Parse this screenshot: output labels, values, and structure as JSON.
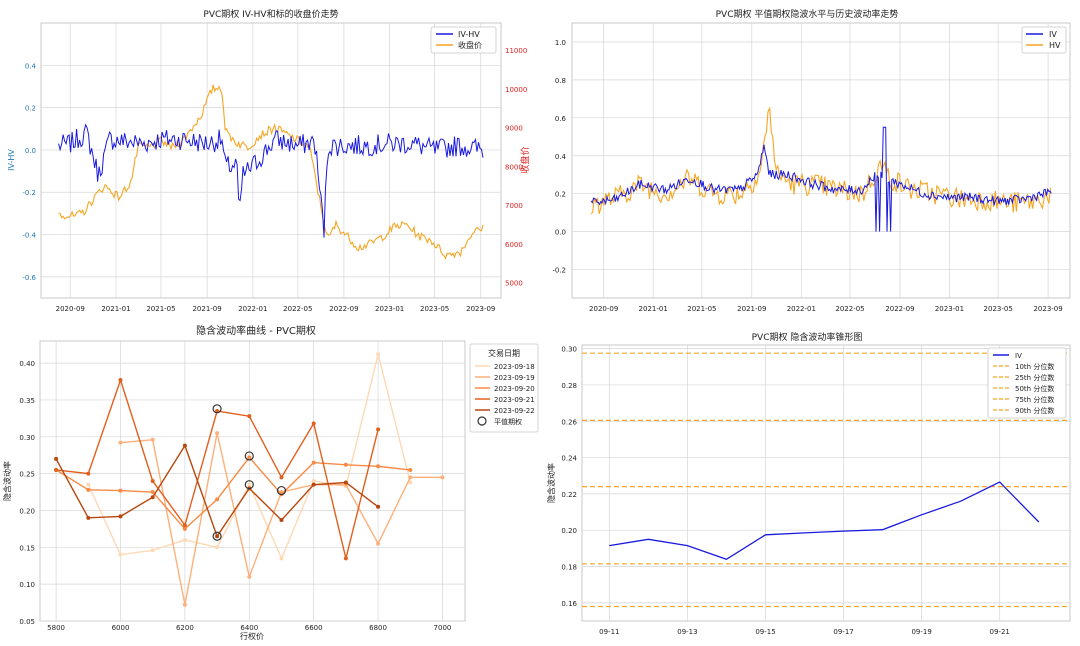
{
  "colors": {
    "blue": "#1a1adf",
    "orange": "#f5a623",
    "red_axis": "#e02020",
    "blue_axis": "#1f77b4",
    "grid": "#d6d6d6",
    "legend_border": "#c8c8c8"
  },
  "chart_data": [
    {
      "id": "ivhv",
      "type": "line",
      "title": "PVC期权 IV-HV和标的收盘价走势",
      "ylabel": "IV-HV",
      "y2label": "收盘价",
      "xticks": [
        "2020-09",
        "2021-01",
        "2021-05",
        "2021-09",
        "2022-01",
        "2022-05",
        "2022-09",
        "2023-01",
        "2023-05",
        "2023-09"
      ],
      "yticks": [
        0.4,
        0.2,
        0.0,
        -0.2,
        -0.4,
        -0.6
      ],
      "ytick_labels": [
        "0.4",
        "0.2",
        "0.0",
        "-0.2",
        "-0.4",
        "-0.6"
      ],
      "y2ticks": [
        11000,
        10000,
        9000,
        8000,
        7000,
        6000,
        5000
      ],
      "ylim": [
        -0.7,
        0.6
      ],
      "y2lim": [
        4600,
        11700
      ],
      "legend_loc": "upper right",
      "series": [
        {
          "name": "IV-HV",
          "color": "blue",
          "axis": "left",
          "anchors": [
            [
              "2020-08-01",
              0.02
            ],
            [
              "2020-09-01",
              0.03
            ],
            [
              "2020-10-15",
              0.08
            ],
            [
              "2020-11-15",
              -0.12
            ],
            [
              "2020-12-15",
              0.05
            ],
            [
              "2021-02-01",
              0.04
            ],
            [
              "2021-03-15",
              0.03
            ],
            [
              "2021-05-01",
              0.05
            ],
            [
              "2021-07-01",
              0.05
            ],
            [
              "2021-09-01",
              0.03
            ],
            [
              "2021-10-10",
              0.05
            ],
            [
              "2021-10-20",
              -0.08
            ],
            [
              "2021-11-20",
              -0.07
            ],
            [
              "2021-11-25",
              -0.33
            ],
            [
              "2021-12-05",
              -0.12
            ],
            [
              "2022-01-15",
              -0.05
            ],
            [
              "2022-03-01",
              0.05
            ],
            [
              "2022-05-01",
              0.02
            ],
            [
              "2022-06-15",
              0.04
            ],
            [
              "2022-07-10",
              -0.38
            ],
            [
              "2022-07-20",
              0.02
            ],
            [
              "2022-09-01",
              0.02
            ],
            [
              "2022-11-01",
              0.02
            ],
            [
              "2023-01-01",
              0.03
            ],
            [
              "2023-03-01",
              0.03
            ],
            [
              "2023-05-01",
              0.0
            ],
            [
              "2023-07-01",
              0.02
            ],
            [
              "2023-09-10",
              0.0
            ]
          ]
        },
        {
          "name": "收盘价",
          "color": "orange",
          "axis": "right",
          "anchors": [
            [
              "2020-08-01",
              6780
            ],
            [
              "2020-09-15",
              6700
            ],
            [
              "2020-10-10",
              6850
            ],
            [
              "2020-11-01",
              7150
            ],
            [
              "2020-12-01",
              7500
            ],
            [
              "2021-01-10",
              7200
            ],
            [
              "2021-02-10",
              7600
            ],
            [
              "2021-03-01",
              8500
            ],
            [
              "2021-04-01",
              8500
            ],
            [
              "2021-05-01",
              8650
            ],
            [
              "2021-06-01",
              8500
            ],
            [
              "2021-07-01",
              8700
            ],
            [
              "2021-08-15",
              9300
            ],
            [
              "2021-09-15",
              10000
            ],
            [
              "2021-10-10",
              10050
            ],
            [
              "2021-10-20",
              8900
            ],
            [
              "2021-11-20",
              8600
            ],
            [
              "2021-12-20",
              8500
            ],
            [
              "2022-01-20",
              8800
            ],
            [
              "2022-03-01",
              9000
            ],
            [
              "2022-04-15",
              8750
            ],
            [
              "2022-06-01",
              8500
            ],
            [
              "2022-07-01",
              7000
            ],
            [
              "2022-07-20",
              6100
            ],
            [
              "2022-08-10",
              6500
            ],
            [
              "2022-09-10",
              6200
            ],
            [
              "2022-10-10",
              5900
            ],
            [
              "2022-11-10",
              6000
            ],
            [
              "2022-12-15",
              6200
            ],
            [
              "2023-01-15",
              6450
            ],
            [
              "2023-02-15",
              6500
            ],
            [
              "2023-03-20",
              6200
            ],
            [
              "2023-04-20",
              6100
            ],
            [
              "2023-06-01",
              5700
            ],
            [
              "2023-07-10",
              5800
            ],
            [
              "2023-08-10",
              6300
            ],
            [
              "2023-09-10",
              6400
            ]
          ]
        }
      ]
    },
    {
      "id": "ivhv-level",
      "type": "line",
      "title": "PVC期权 平值期权隐波水平与历史波动率走势",
      "xticks": [
        "2020-09",
        "2021-01",
        "2021-05",
        "2021-09",
        "2022-01",
        "2022-05",
        "2022-09",
        "2023-01",
        "2023-05",
        "2023-09"
      ],
      "yticks": [
        1.0,
        0.8,
        0.6,
        0.4,
        0.2,
        0.0,
        -0.2
      ],
      "ytick_labels": [
        "1.0",
        "0.8",
        "0.6",
        "0.4",
        "0.2",
        "0.0",
        "-0.2"
      ],
      "ylim": [
        -0.35,
        1.1
      ],
      "legend_loc": "upper right",
      "series": [
        {
          "name": "IV",
          "color": "blue",
          "anchors": [
            [
              "2020-08-01",
              0.15
            ],
            [
              "2020-10-01",
              0.17
            ],
            [
              "2020-12-01",
              0.25
            ],
            [
              "2021-02-01",
              0.22
            ],
            [
              "2021-04-01",
              0.28
            ],
            [
              "2021-06-01",
              0.22
            ],
            [
              "2021-08-01",
              0.22
            ],
            [
              "2021-09-15",
              0.3
            ],
            [
              "2021-10-01",
              0.45
            ],
            [
              "2021-10-15",
              0.3
            ],
            [
              "2021-12-01",
              0.3
            ],
            [
              "2022-02-01",
              0.25
            ],
            [
              "2022-04-01",
              0.22
            ],
            [
              "2022-06-01",
              0.22
            ],
            [
              "2022-07-01",
              0.3
            ],
            [
              "2022-08-01",
              0.28
            ],
            [
              "2022-09-01",
              0.25
            ],
            [
              "2022-11-01",
              0.2
            ],
            [
              "2023-01-01",
              0.18
            ],
            [
              "2023-03-01",
              0.18
            ],
            [
              "2023-05-01",
              0.16
            ],
            [
              "2023-07-01",
              0.17
            ],
            [
              "2023-09-10",
              0.21
            ]
          ]
        },
        {
          "name": "HV",
          "color": "orange",
          "anchors": [
            [
              "2020-08-01",
              0.14
            ],
            [
              "2020-10-01",
              0.18
            ],
            [
              "2020-12-01",
              0.25
            ],
            [
              "2021-02-01",
              0.2
            ],
            [
              "2021-04-01",
              0.28
            ],
            [
              "2021-06-01",
              0.2
            ],
            [
              "2021-08-01",
              0.2
            ],
            [
              "2021-09-20",
              0.3
            ],
            [
              "2021-10-15",
              0.65
            ],
            [
              "2021-11-01",
              0.3
            ],
            [
              "2021-12-15",
              0.25
            ],
            [
              "2022-02-01",
              0.25
            ],
            [
              "2022-04-01",
              0.22
            ],
            [
              "2022-06-01",
              0.2
            ],
            [
              "2022-07-15",
              0.35
            ],
            [
              "2022-08-15",
              0.27
            ],
            [
              "2022-10-01",
              0.22
            ],
            [
              "2022-12-01",
              0.2
            ],
            [
              "2023-02-01",
              0.17
            ],
            [
              "2023-04-01",
              0.17
            ],
            [
              "2023-06-01",
              0.15
            ],
            [
              "2023-08-01",
              0.16
            ],
            [
              "2023-09-10",
              0.2
            ]
          ]
        }
      ]
    },
    {
      "id": "smile",
      "type": "line",
      "title": "隐含波动率曲线 - PVC期权",
      "xlabel": "行权价",
      "ylabel": "隐含波动率",
      "xticks": [
        5800,
        6000,
        6200,
        6400,
        6600,
        6800,
        7000
      ],
      "yticks": [
        0.4,
        0.35,
        0.3,
        0.25,
        0.2,
        0.15,
        0.1,
        0.05
      ],
      "ytick_labels": [
        "0.40",
        "0.35",
        "0.30",
        "0.25",
        "0.20",
        "0.15",
        "0.10",
        "0.05"
      ],
      "xlim": [
        5750,
        7070
      ],
      "ylim": [
        0.05,
        0.43
      ],
      "legend_title": "交易日期",
      "legend_loc": "outside right",
      "atm_label": "平值期权",
      "series": [
        {
          "name": "2023-09-18",
          "color": "#fdd9b5",
          "x": [
            5900,
            6000,
            6100,
            6200,
            6300,
            6400,
            6500,
            6600,
            6700,
            6800,
            6900
          ],
          "y": [
            0.235,
            0.14,
            0.146,
            0.16,
            0.15,
            0.235,
            0.135,
            0.24,
            0.233,
            0.412,
            0.238
          ]
        },
        {
          "name": "2023-09-19",
          "color": "#fdb07a",
          "x": [
            6000,
            6100,
            6200,
            6300,
            6400,
            6500,
            6600,
            6700,
            6800,
            6900,
            7000
          ],
          "y": [
            0.292,
            0.296,
            0.072,
            0.305,
            0.11,
            0.225,
            0.235,
            0.235,
            0.155,
            0.245,
            0.245
          ]
        },
        {
          "name": "2023-09-20",
          "color": "#f98a45",
          "x": [
            5800,
            5900,
            6000,
            6100,
            6200,
            6300,
            6400,
            6500,
            6600,
            6700,
            6800,
            6900
          ],
          "y": [
            0.255,
            0.228,
            0.227,
            0.225,
            0.175,
            0.215,
            0.272,
            0.222,
            0.265,
            0.262,
            0.26,
            0.255
          ]
        },
        {
          "name": "2023-09-21",
          "color": "#e2601e",
          "x": [
            5800,
            5900,
            6000,
            6100,
            6200,
            6300,
            6400,
            6500,
            6600,
            6700,
            6800
          ],
          "y": [
            0.255,
            0.25,
            0.377,
            0.24,
            0.18,
            0.335,
            0.328,
            0.245,
            0.318,
            0.135,
            0.31
          ]
        },
        {
          "name": "2023-09-22",
          "color": "#b8470e",
          "x": [
            5800,
            5900,
            6000,
            6100,
            6200,
            6300,
            6400,
            6500,
            6600,
            6700,
            6800
          ],
          "y": [
            0.27,
            0.19,
            0.192,
            0.218,
            0.288,
            0.165,
            0.23,
            0.187,
            0.235,
            0.238,
            0.205
          ]
        }
      ],
      "atm_points": [
        [
          6300,
          0.338
        ],
        [
          6400,
          0.274
        ],
        [
          6400,
          0.235
        ],
        [
          6500,
          0.227
        ],
        [
          6300,
          0.165
        ]
      ]
    },
    {
      "id": "cone",
      "type": "line",
      "title": "PVC期权 隐含波动率锥形图",
      "ylabel": "隐含波动率",
      "xticks": [
        "09-11",
        "09-13",
        "09-15",
        "09-17",
        "09-19",
        "09-21"
      ],
      "yticks": [
        0.3,
        0.28,
        0.26,
        0.24,
        0.22,
        0.2,
        0.18,
        0.16
      ],
      "ytick_labels": [
        "0.30",
        "0.28",
        "0.26",
        "0.24",
        "0.22",
        "0.20",
        "0.18",
        "0.16"
      ],
      "ylim": [
        0.15,
        0.302
      ],
      "legend_loc": "upper right",
      "series": [
        {
          "name": "IV",
          "color": "blue",
          "x": [
            "09-11",
            "09-12",
            "09-13",
            "09-14",
            "09-15",
            "09-16",
            "09-17",
            "09-18",
            "09-19",
            "09-20",
            "09-21",
            "09-22"
          ],
          "y": [
            0.1915,
            0.195,
            0.1915,
            0.184,
            0.1975,
            0.1985,
            0.1995,
            0.2003,
            0.2085,
            0.216,
            0.2265,
            0.2045
          ]
        }
      ],
      "percentiles": [
        {
          "name": "10th 分位数",
          "value": 0.158
        },
        {
          "name": "25th 分位数",
          "value": 0.1815
        },
        {
          "name": "50th 分位数",
          "value": 0.224
        },
        {
          "name": "75th 分位数",
          "value": 0.2605
        },
        {
          "name": "90th 分位数",
          "value": 0.2975
        }
      ]
    }
  ]
}
